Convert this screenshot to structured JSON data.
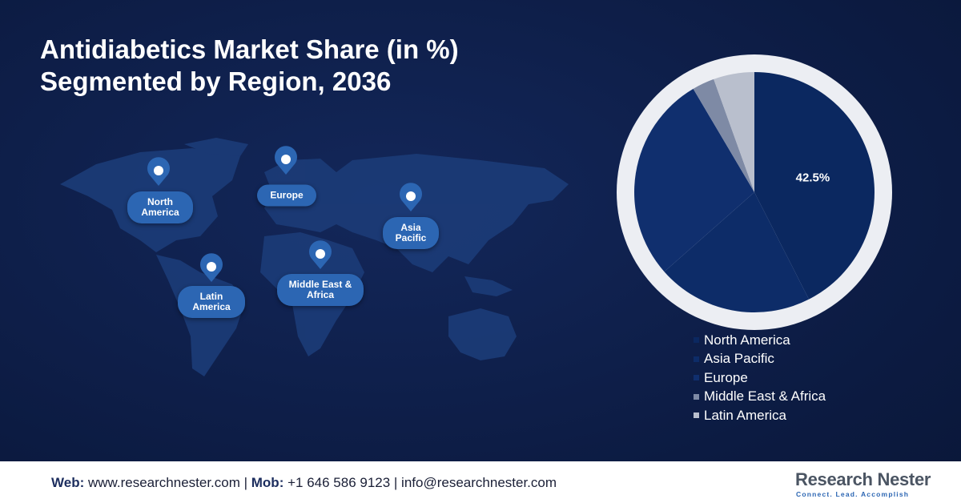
{
  "chart_data": {
    "type": "pie",
    "title": [
      "Antidiabetics Market Share (in %)",
      "Segmented by Region, 2036"
    ],
    "categories": [
      "North America",
      "Asia Pacific",
      "Europe",
      "Middle East & Africa",
      "Latin America"
    ],
    "values": [
      42.5,
      21,
      28,
      3,
      5.5
    ],
    "value_labels": [
      "42.5%",
      null,
      null,
      null,
      null
    ],
    "colors": [
      "#0b2860",
      "#0d2c68",
      "#102f6e",
      "#7e8aa5",
      "#b9bfcd"
    ]
  },
  "map": {
    "labels": [
      "North America",
      "Europe",
      "Asia Pacific",
      "Latin America",
      "Middle East & Africa"
    ]
  },
  "footer": {
    "web_label": "Web:",
    "web": "www.researchnester.com |",
    "mob_label": "Mob:",
    "contact": "+1 646 586 9123 | info@researchnester.com"
  },
  "logo": {
    "name": "Research Nester",
    "tagline": "Connect. Lead. Accomplish"
  }
}
